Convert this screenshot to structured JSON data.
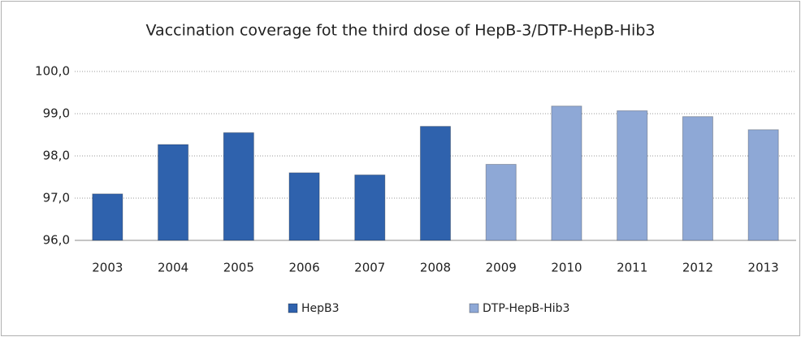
{
  "chart_data": {
    "type": "bar",
    "title": "Vaccination coverage fot the third dose of HepB-3/DTP-HepB-Hib3",
    "categories": [
      "2003",
      "2004",
      "2005",
      "2006",
      "2007",
      "2008",
      "2009",
      "2010",
      "2011",
      "2012",
      "2013"
    ],
    "series": [
      {
        "name": "HepB3",
        "color": "#2f62ad",
        "values": [
          97.1,
          98.27,
          98.55,
          97.6,
          97.55,
          98.7,
          null,
          null,
          null,
          null,
          null
        ]
      },
      {
        "name": "DTP-HepB-Hib3",
        "color": "#8ea8d6",
        "values": [
          null,
          null,
          null,
          null,
          null,
          null,
          97.8,
          99.18,
          99.07,
          98.93,
          98.62
        ]
      }
    ],
    "ylim": [
      96,
      100
    ],
    "yticks": [
      {
        "value": 96,
        "label": "96,0"
      },
      {
        "value": 97,
        "label": "97,0"
      },
      {
        "value": 98,
        "label": "98,0"
      },
      {
        "value": 99,
        "label": "99,0"
      },
      {
        "value": 100,
        "label": "100,0"
      }
    ],
    "grid": true,
    "legend": "bottom"
  }
}
